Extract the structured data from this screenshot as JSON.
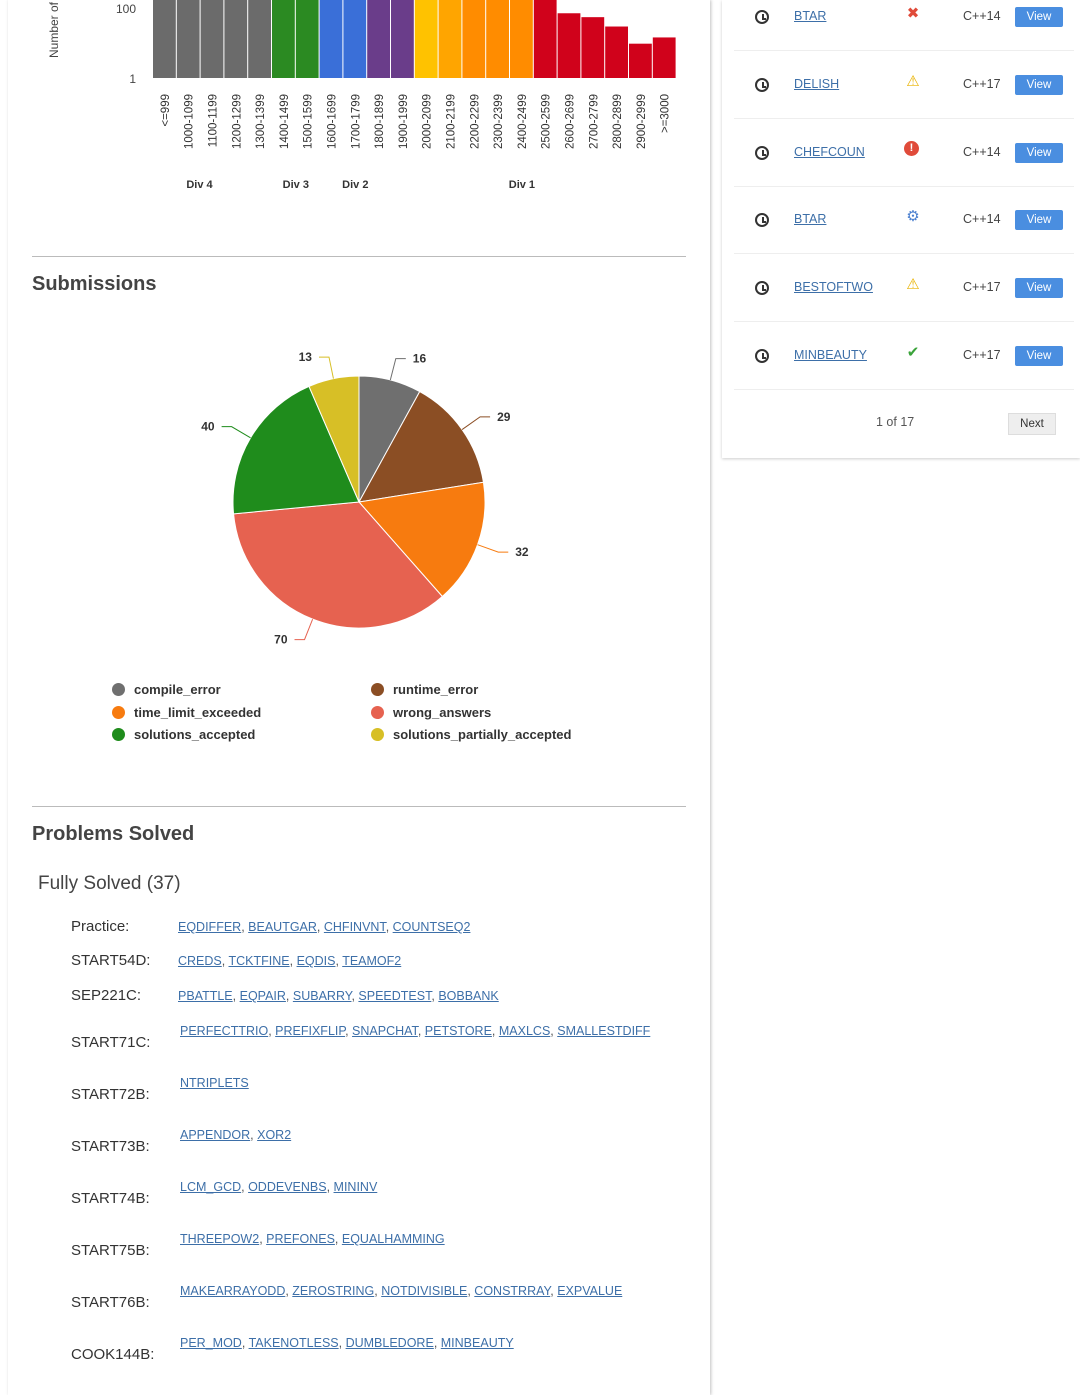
{
  "rating_chart": {
    "ylabel": "Number of",
    "y_ticks": [
      "100",
      "1"
    ],
    "categories": [
      "<=999",
      "1000-1099",
      "1100-1199",
      "1200-1299",
      "1300-1399",
      "1400-1499",
      "1500-1599",
      "1600-1699",
      "1700-1799",
      "1800-1899",
      "1900-1999",
      "2000-2099",
      "2100-2199",
      "2200-2299",
      "2300-2399",
      "2400-2499",
      "2500-2599",
      "2600-2699",
      "2700-2799",
      "2800-2899",
      "2900-2999",
      ">=3000"
    ],
    "bar_colors": [
      "#6b6b6b",
      "#6b6b6b",
      "#6b6b6b",
      "#6b6b6b",
      "#6b6b6b",
      "#2b8a22",
      "#2b8a22",
      "#3a6fd8",
      "#3a6fd8",
      "#6a3d8a",
      "#6a3d8a",
      "#ffc200",
      "#ffa500",
      "#ff8c00",
      "#ff8c00",
      "#ff8c00",
      "#d0021b",
      "#d0021b",
      "#d0021b",
      "#d0021b",
      "#d0021b",
      "#d0021b"
    ],
    "bar_fill": [
      1,
      1,
      1,
      1,
      1,
      1,
      1,
      1,
      1,
      1,
      1,
      1,
      1,
      1,
      1,
      1,
      1,
      0.83,
      0.78,
      0.66,
      0.44,
      0.52
    ],
    "divisions": [
      {
        "label": "Div 4",
        "first": 2,
        "last": 2
      },
      {
        "label": "Div 3",
        "first": 5,
        "last": 6
      },
      {
        "label": "Div 2",
        "first": 8,
        "last": 8
      },
      {
        "label": "Div 1",
        "first": 15,
        "last": 15
      }
    ]
  },
  "submissions": {
    "title": "Submissions",
    "chart_data": {
      "type": "pie",
      "categories": [
        "compile_error",
        "runtime_error",
        "time_limit_exceeded",
        "wrong_answers",
        "solutions_accepted",
        "solutions_partially_accepted"
      ],
      "values": [
        16,
        29,
        32,
        70,
        40,
        13
      ],
      "colors": [
        "#6f6f6f",
        "#8b4e24",
        "#f77b0f",
        "#e66250",
        "#1f8c1c",
        "#d7bf26"
      ],
      "legend_placement": "bottom"
    }
  },
  "problems_solved": {
    "title": "Problems Solved",
    "fully_solved_label": "Fully Solved (37)",
    "contests": [
      {
        "name": "Practice:",
        "problems": [
          "EQDIFFER",
          "BEAUTGAR",
          "CHFINVNT",
          "COUNTSEQ2"
        ]
      },
      {
        "name": "START54D:",
        "problems": [
          "CREDS",
          "TCKTFINE",
          "EQDIS",
          "TEAMOF2"
        ]
      },
      {
        "name": "SEP221C:",
        "problems": [
          "PBATTLE",
          "EQPAIR",
          "SUBARRY",
          "SPEEDTEST",
          "BOBBANK"
        ]
      },
      {
        "name": "START71C:",
        "problems": [
          "PERFECTTRIO",
          "PREFIXFLIP",
          "SNAPCHAT",
          "PETSTORE",
          "MAXLCS",
          "SMALLESTDIFF"
        ]
      },
      {
        "name": "START72B:",
        "problems": [
          "NTRIPLETS"
        ]
      },
      {
        "name": "START73B:",
        "problems": [
          "APPENDOR",
          "XOR2"
        ]
      },
      {
        "name": "START74B:",
        "problems": [
          "LCM_GCD",
          "ODDEVENBS",
          "MININV"
        ]
      },
      {
        "name": "START75B:",
        "problems": [
          "THREEPOW2",
          "PREFONES",
          "EQUALHAMMING"
        ]
      },
      {
        "name": "START76B:",
        "problems": [
          "MAKEARRAYODD",
          "ZEROSTRING",
          "NOTDIVISIBLE",
          "CONSTRRAY",
          "EXPVALUE"
        ]
      },
      {
        "name": "COOK144B:",
        "problems": [
          "PER_MOD",
          "TAKENOTLESS",
          "DUMBLEDORE",
          "MINBEAUTY"
        ]
      }
    ]
  },
  "recent_submissions": {
    "rows": [
      {
        "problem": "BTAR",
        "status": "wrong-answer",
        "status_icon": "x-icon",
        "language": "C++14",
        "action": "View"
      },
      {
        "problem": "DELISH",
        "status": "time-limit",
        "status_icon": "warning-icon",
        "language": "C++17",
        "action": "View"
      },
      {
        "problem": "CHEFCOUN",
        "status": "runtime-error",
        "status_icon": "error-icon",
        "language": "C++14",
        "action": "View"
      },
      {
        "problem": "BTAR",
        "status": "compile-error",
        "status_icon": "compile-icon",
        "language": "C++14",
        "action": "View"
      },
      {
        "problem": "BESTOFTWO",
        "status": "time-limit",
        "status_icon": "warning-icon",
        "language": "C++17",
        "action": "View"
      },
      {
        "problem": "MINBEAUTY",
        "status": "accepted",
        "status_icon": "check-icon",
        "language": "C++17",
        "action": "View"
      }
    ],
    "pager_text": "1 of 17",
    "next_label": "Next"
  }
}
